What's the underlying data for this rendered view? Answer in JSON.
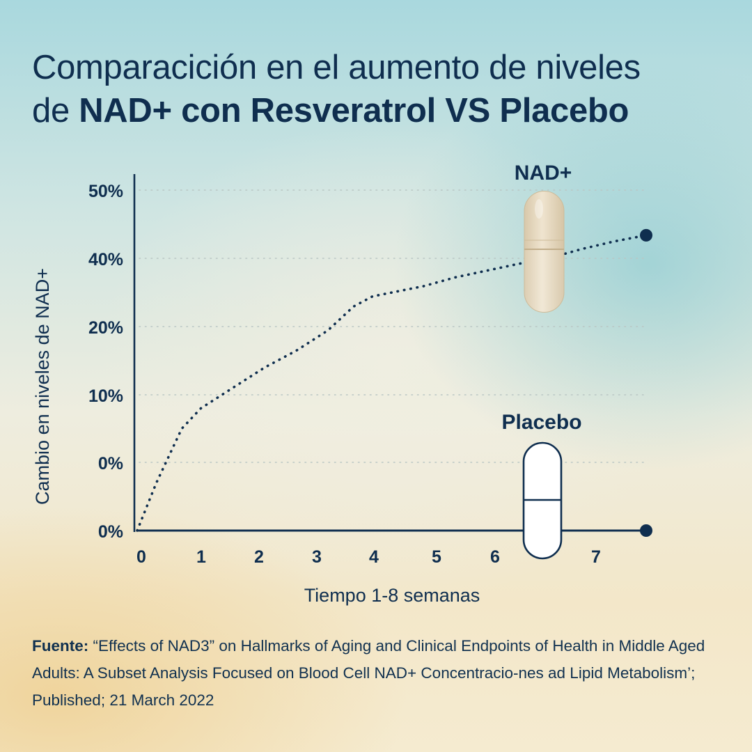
{
  "title": {
    "line1": "Comparacición en el aumento de niveles",
    "line2_regular": "de ",
    "line2_bold": "NAD+ con Resveratrol VS Placebo"
  },
  "chart_data": {
    "type": "line",
    "ylabel": "Cambio en niveles de NAD+",
    "xlabel": "Tiempo 1-8 semanas",
    "x_ticks": [
      "0",
      "1",
      "2",
      "3",
      "4",
      "5",
      "6",
      "7"
    ],
    "y_ticks": [
      "0%",
      "0%",
      "10%",
      "20%",
      "40%",
      "50%"
    ],
    "grid": "dotted horizontal",
    "series": [
      {
        "name": "NAD+",
        "style": "dotted",
        "x": [
          0,
          0.3,
          0.7,
          1.0,
          1.5,
          2.0,
          2.5,
          3.0,
          3.4,
          3.7,
          4.5,
          5.0,
          5.5,
          6.0,
          6.5,
          7.0,
          7.5,
          8.0
        ],
        "y": [
          -10,
          -3,
          5,
          8,
          11,
          14,
          16.5,
          19.5,
          23,
          24.5,
          26,
          27.3,
          28.3,
          29.3,
          30.2,
          31.5,
          32.6,
          33.5
        ],
        "end_marker": true
      },
      {
        "name": "Placebo",
        "style": "solid",
        "x": [
          0,
          8.0
        ],
        "y": [
          -10,
          -10
        ],
        "end_marker": true
      }
    ],
    "annotations": [
      {
        "text": "NAD+",
        "icon": "capsule-beige-icon"
      },
      {
        "text": "Placebo",
        "icon": "capsule-white-icon"
      }
    ],
    "colors": {
      "line": "#0f2e4f",
      "grid": "#b9c6c4",
      "capsule_nad": "#e4d7bf",
      "capsule_placebo": "#ffffff"
    }
  },
  "source": {
    "label": "Fuente:",
    "text": " “Effects of NAD3” on Hallmarks of Aging and Clinical Endpoints of Health in Middle Aged Adults: A Subset Analysis Focused on Blood Cell NAD+ Concentracio-nes ad Lipid Metabolism’; Published; 21 March 2022"
  }
}
